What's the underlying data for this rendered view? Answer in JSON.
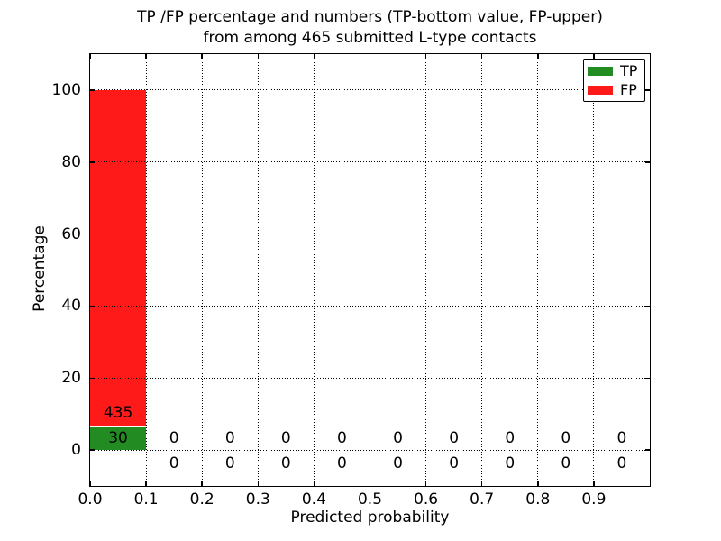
{
  "title": {
    "line1": "TP /FP percentage and numbers (TP-bottom value, FP-upper)",
    "line2": "from among 465 submitted L-type contacts"
  },
  "axes": {
    "xlabel": "Predicted probability",
    "ylabel": "Percentage"
  },
  "legend": {
    "entries": [
      {
        "label": "TP",
        "color": "#228B22"
      },
      {
        "label": "FP",
        "color": "#FF1A1A"
      }
    ],
    "position": "upper right"
  },
  "chart_data": {
    "type": "bar",
    "stacked": true,
    "title": "TP /FP percentage and numbers (TP-bottom value, FP-upper) from among 465 submitted L-type contacts",
    "xlabel": "Predicted probability",
    "ylabel": "Percentage",
    "total_submitted": 465,
    "xlim": [
      0.0,
      1.0
    ],
    "ylim": [
      -10,
      110
    ],
    "grid": "dotted",
    "legend_position": "upper right",
    "bin_edges": [
      0.0,
      0.1,
      0.2,
      0.3,
      0.4,
      0.5,
      0.6,
      0.7,
      0.8,
      0.9,
      1.0
    ],
    "bin_centers": [
      0.05,
      0.15,
      0.25,
      0.35,
      0.45,
      0.55,
      0.65,
      0.75,
      0.85,
      0.95
    ],
    "xtick_positions": [
      0.0,
      0.1,
      0.2,
      0.3,
      0.4,
      0.5,
      0.6,
      0.7,
      0.8,
      0.9
    ],
    "xtick_labels": [
      "0.0",
      "0.1",
      "0.2",
      "0.3",
      "0.4",
      "0.5",
      "0.6",
      "0.7",
      "0.8",
      "0.9"
    ],
    "ytick_positions": [
      0,
      20,
      40,
      60,
      80,
      100
    ],
    "ytick_labels": [
      "0",
      "20",
      "40",
      "60",
      "80",
      "100"
    ],
    "series": [
      {
        "name": "TP",
        "color": "#228B22",
        "counts": [
          30,
          0,
          0,
          0,
          0,
          0,
          0,
          0,
          0,
          0
        ],
        "percent": [
          6.45,
          0,
          0,
          0,
          0,
          0,
          0,
          0,
          0,
          0
        ]
      },
      {
        "name": "FP",
        "color": "#FF1A1A",
        "counts": [
          435,
          0,
          0,
          0,
          0,
          0,
          0,
          0,
          0,
          0
        ],
        "percent": [
          93.55,
          0,
          0,
          0,
          0,
          0,
          0,
          0,
          0,
          0
        ]
      }
    ],
    "value_labels": [
      {
        "x": 0.05,
        "y_pct": 10.2,
        "text": "435"
      },
      {
        "x": 0.05,
        "y_pct": 3.3,
        "text": "30"
      },
      {
        "x": 0.15,
        "y_pct": 3.3,
        "text": "0"
      },
      {
        "x": 0.25,
        "y_pct": 3.3,
        "text": "0"
      },
      {
        "x": 0.35,
        "y_pct": 3.3,
        "text": "0"
      },
      {
        "x": 0.45,
        "y_pct": 3.3,
        "text": "0"
      },
      {
        "x": 0.55,
        "y_pct": 3.3,
        "text": "0"
      },
      {
        "x": 0.65,
        "y_pct": 3.3,
        "text": "0"
      },
      {
        "x": 0.75,
        "y_pct": 3.3,
        "text": "0"
      },
      {
        "x": 0.85,
        "y_pct": 3.3,
        "text": "0"
      },
      {
        "x": 0.95,
        "y_pct": 3.3,
        "text": "0"
      },
      {
        "x": 0.15,
        "y_pct": -3.7,
        "text": "0"
      },
      {
        "x": 0.25,
        "y_pct": -3.7,
        "text": "0"
      },
      {
        "x": 0.35,
        "y_pct": -3.7,
        "text": "0"
      },
      {
        "x": 0.45,
        "y_pct": -3.7,
        "text": "0"
      },
      {
        "x": 0.55,
        "y_pct": -3.7,
        "text": "0"
      },
      {
        "x": 0.65,
        "y_pct": -3.7,
        "text": "0"
      },
      {
        "x": 0.75,
        "y_pct": -3.7,
        "text": "0"
      },
      {
        "x": 0.85,
        "y_pct": -3.7,
        "text": "0"
      },
      {
        "x": 0.95,
        "y_pct": -3.7,
        "text": "0"
      }
    ]
  }
}
